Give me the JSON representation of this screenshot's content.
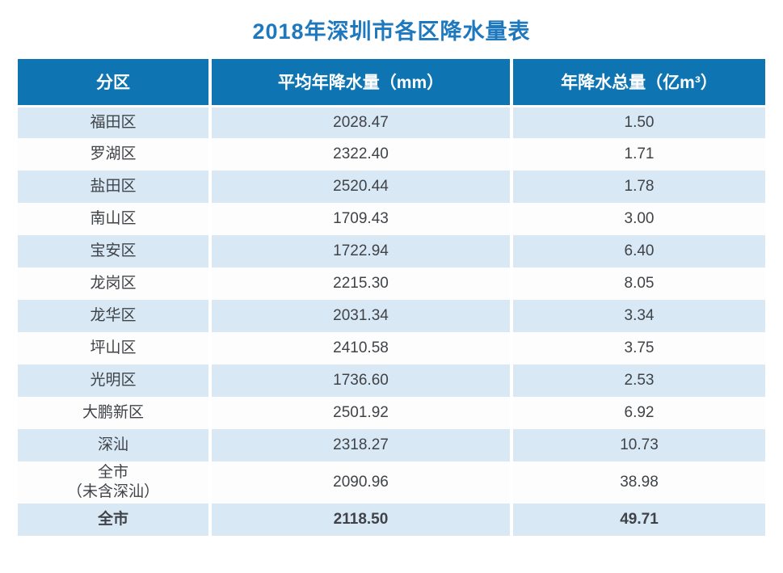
{
  "title": "2018年深圳市各区降水量表",
  "colors": {
    "title_color": "#1d78be",
    "header_bg": "#0e74b2",
    "row_alt_bg": "#d9e8f5",
    "row_bg": "#fdfdfe",
    "text_color": "#3f4347"
  },
  "table": {
    "columns": [
      "分区",
      "平均年降水量（mm）",
      "年降水总量（亿m³）"
    ],
    "rows": [
      {
        "district": "福田区",
        "avg_mm": "2028.47",
        "total_yi_m3": "1.50"
      },
      {
        "district": "罗湖区",
        "avg_mm": "2322.40",
        "total_yi_m3": "1.71"
      },
      {
        "district": "盐田区",
        "avg_mm": "2520.44",
        "total_yi_m3": "1.78"
      },
      {
        "district": "南山区",
        "avg_mm": "1709.43",
        "total_yi_m3": "3.00"
      },
      {
        "district": "宝安区",
        "avg_mm": "1722.94",
        "total_yi_m3": "6.40"
      },
      {
        "district": "龙岗区",
        "avg_mm": "2215.30",
        "total_yi_m3": "8.05"
      },
      {
        "district": "龙华区",
        "avg_mm": "2031.34",
        "total_yi_m3": "3.34"
      },
      {
        "district": "坪山区",
        "avg_mm": "2410.58",
        "total_yi_m3": "3.75"
      },
      {
        "district": "光明区",
        "avg_mm": "1736.60",
        "total_yi_m3": "2.53"
      },
      {
        "district": "大鹏新区",
        "avg_mm": "2501.92",
        "total_yi_m3": "6.92"
      },
      {
        "district": "深汕",
        "avg_mm": "2318.27",
        "total_yi_m3": "10.73"
      },
      {
        "district": "全市\n（未含深汕）",
        "avg_mm": "2090.96",
        "total_yi_m3": "38.98"
      },
      {
        "district": "全市",
        "avg_mm": "2118.50",
        "total_yi_m3": "49.71"
      }
    ]
  },
  "chart_data": {
    "type": "table",
    "title": "2018年深圳市各区降水量表",
    "columns": [
      "分区",
      "平均年降水量（mm）",
      "年降水总量（亿m³）"
    ],
    "categories": [
      "福田区",
      "罗湖区",
      "盐田区",
      "南山区",
      "宝安区",
      "龙岗区",
      "龙华区",
      "坪山区",
      "光明区",
      "大鹏新区",
      "深汕",
      "全市（未含深汕）",
      "全市"
    ],
    "series": [
      {
        "name": "平均年降水量（mm）",
        "values": [
          2028.47,
          2322.4,
          2520.44,
          1709.43,
          1722.94,
          2215.3,
          2031.34,
          2410.58,
          1736.6,
          2501.92,
          2318.27,
          2090.96,
          2118.5
        ]
      },
      {
        "name": "年降水总量（亿m³）",
        "values": [
          1.5,
          1.71,
          1.78,
          3.0,
          6.4,
          8.05,
          3.34,
          3.75,
          2.53,
          6.92,
          10.73,
          38.98,
          49.71
        ]
      }
    ]
  }
}
